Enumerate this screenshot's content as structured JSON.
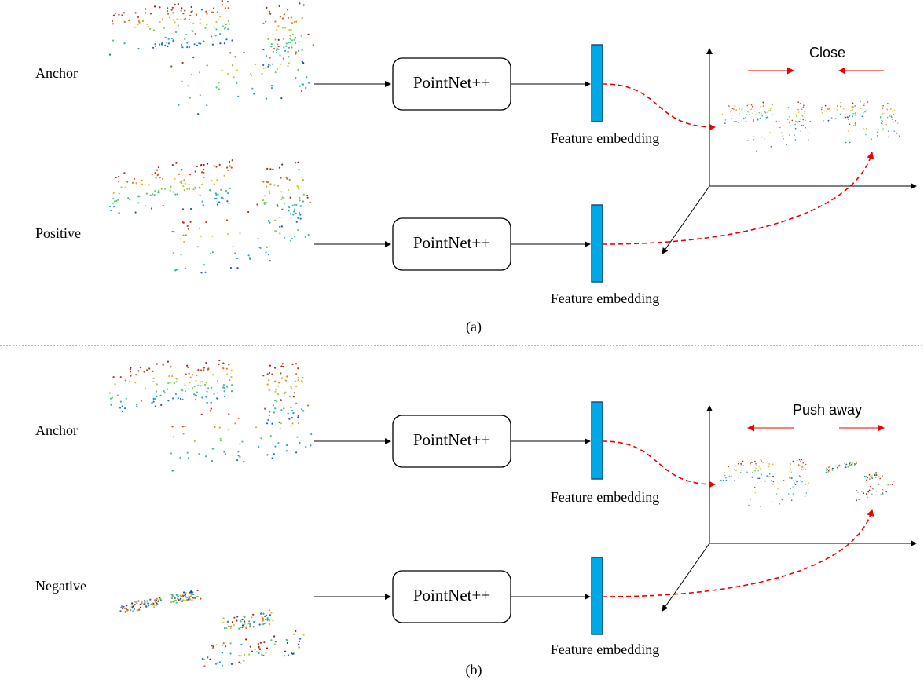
{
  "panels": [
    {
      "label": "(a)",
      "relation": "Close",
      "rows": [
        {
          "input": "Anchor",
          "network": "PointNet++",
          "embedding": "Feature embedding"
        },
        {
          "input": "Positive",
          "network": "PointNet++",
          "embedding": "Feature embedding"
        }
      ]
    },
    {
      "label": "(b)",
      "relation": "Push away",
      "rows": [
        {
          "input": "Anchor",
          "network": "PointNet++",
          "embedding": "Feature embedding"
        },
        {
          "input": "Negative",
          "network": "PointNet++",
          "embedding": "Feature embedding"
        }
      ]
    }
  ]
}
